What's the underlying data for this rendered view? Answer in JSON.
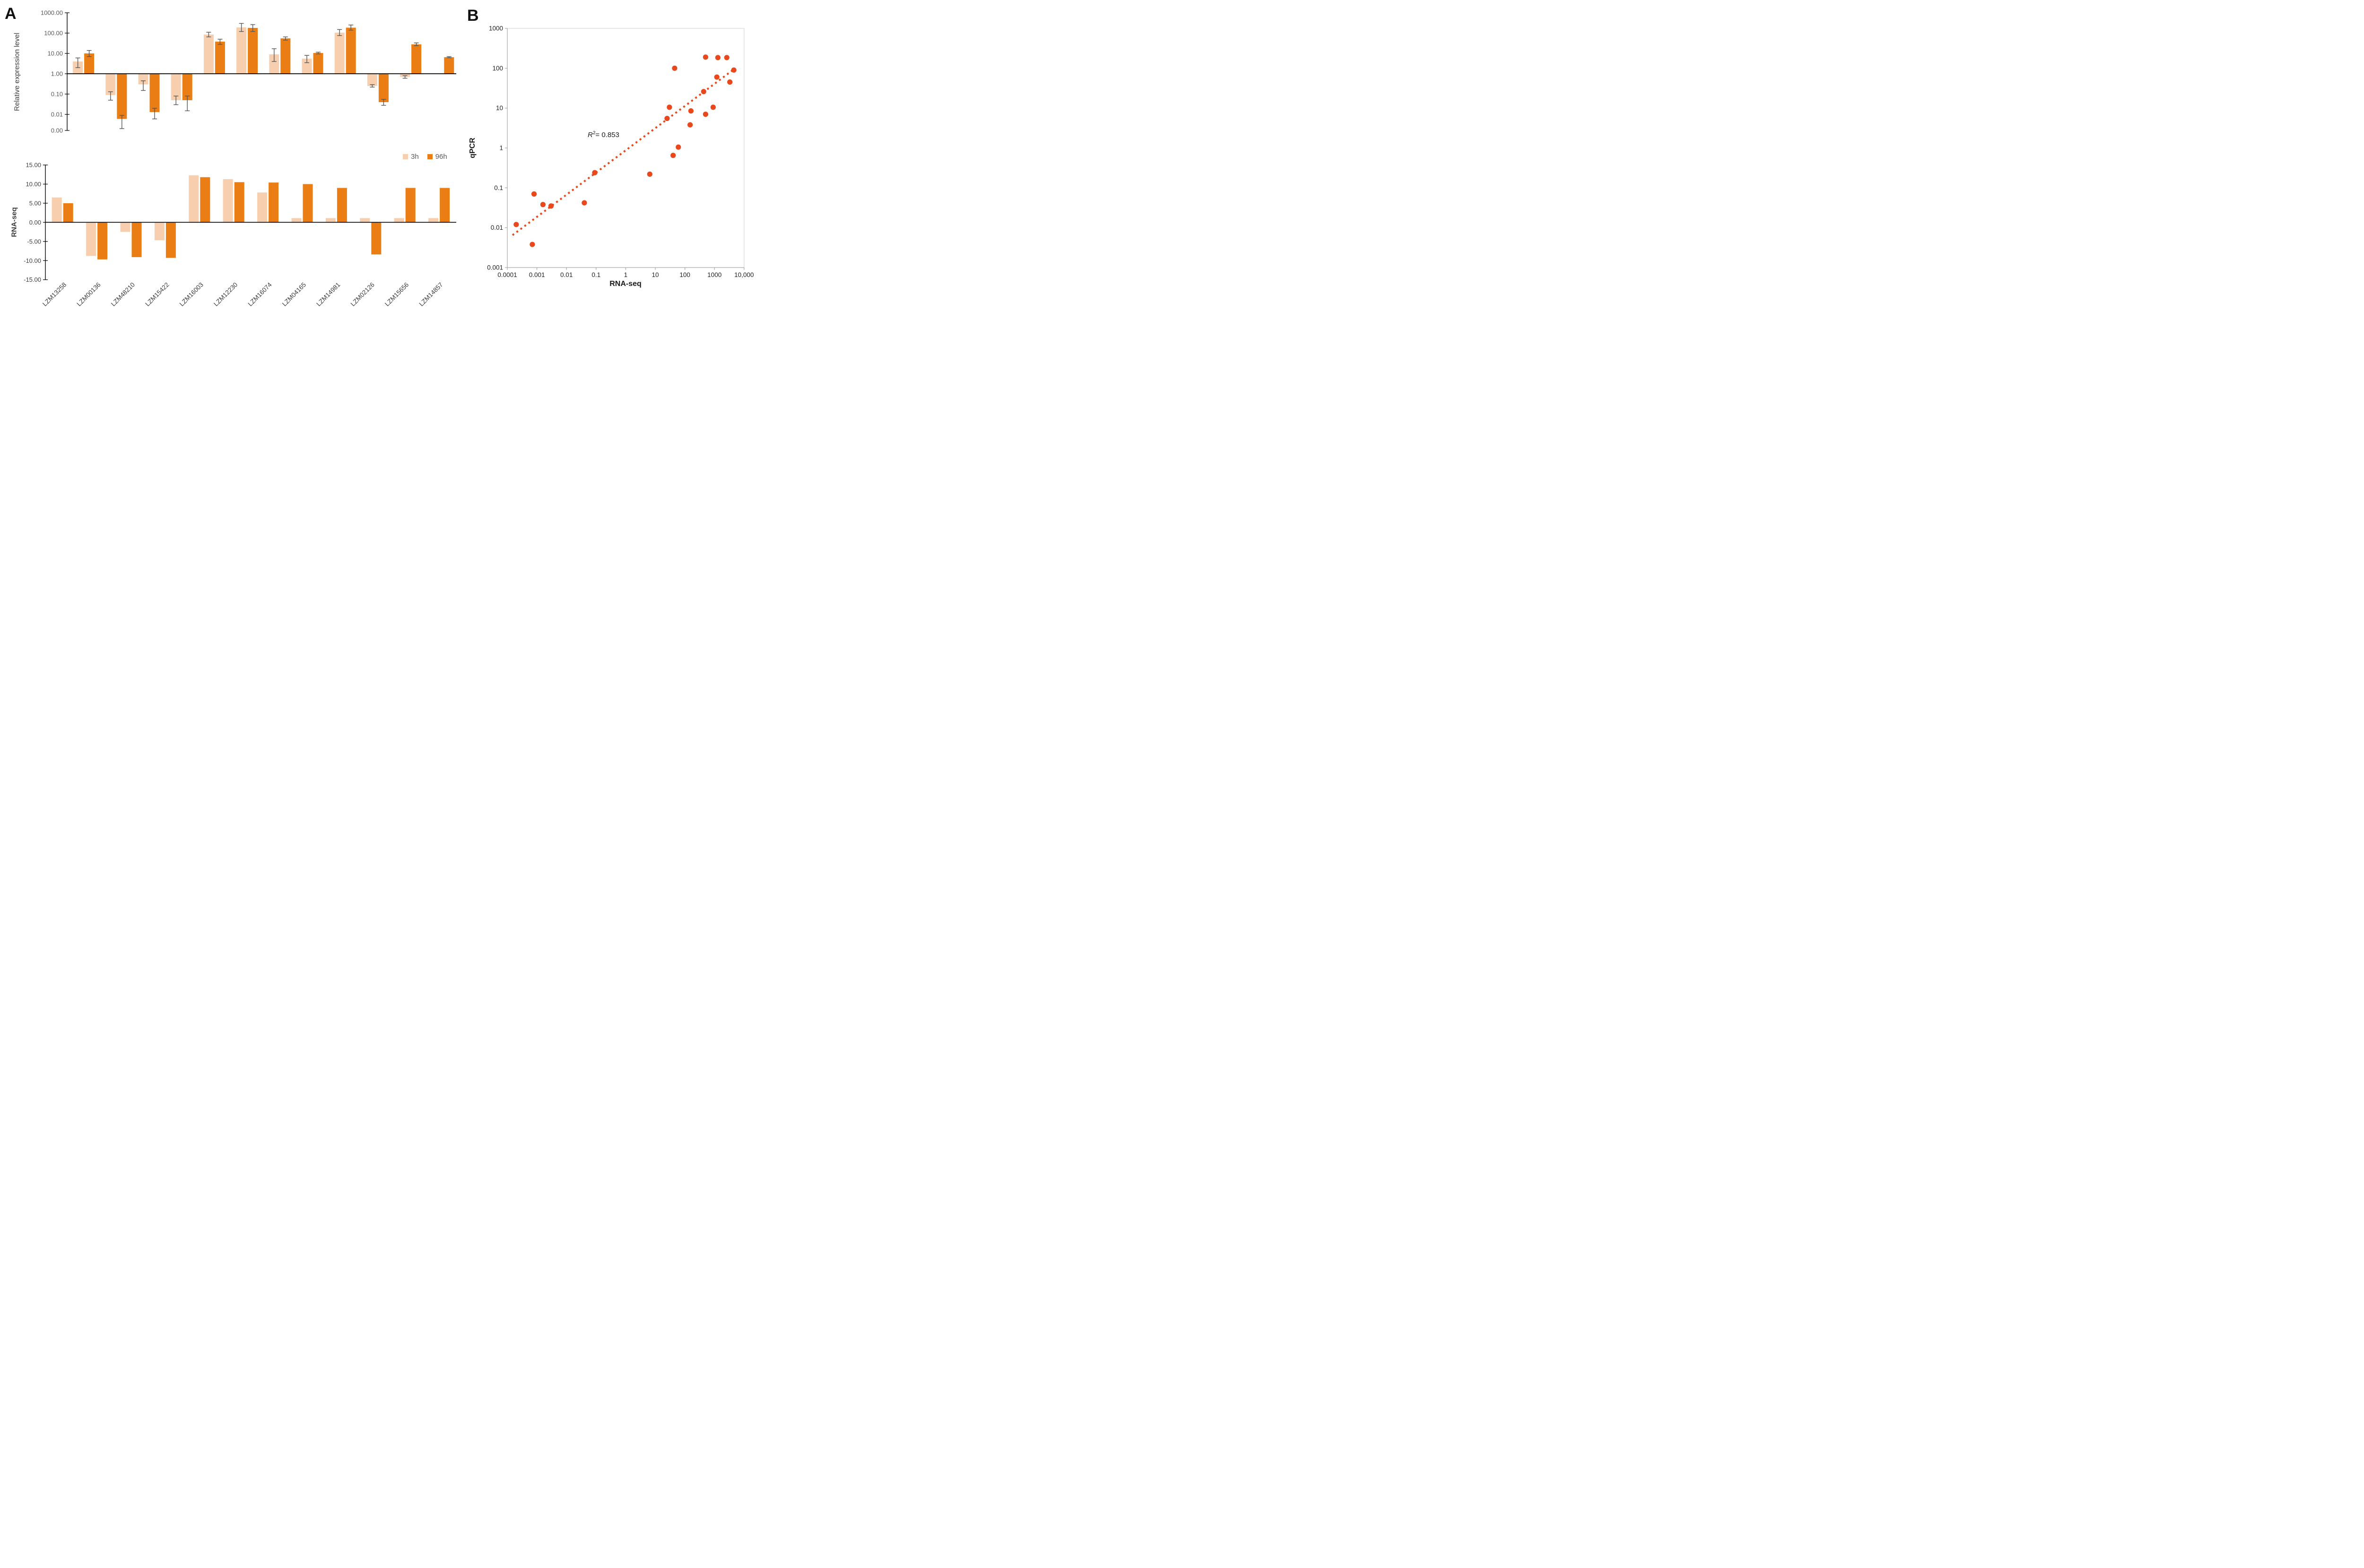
{
  "panels": {
    "a_label": "A",
    "b_label": "B"
  },
  "legend": {
    "items": [
      {
        "label": "3h",
        "color": "#F7CFAE"
      },
      {
        "label": "96h",
        "color": "#EA7D14"
      }
    ]
  },
  "annotation": {
    "r": "R",
    "exp": "2",
    "value": "= 0.853"
  },
  "colors": {
    "bar_3h": "#F7CFAE",
    "bar_96h": "#EA7D14",
    "error_bar": "#555555",
    "scatter": "#E8481C",
    "axis_dark": "#000000",
    "axis_gray": "#a6a6a6",
    "border_gray": "#d9d9d9",
    "tick_text_top": "#595959",
    "tick_text_bottom": "#3f3f3f",
    "tick_text_b": "#1f1f1f",
    "gene_label": "#3d3d3d"
  },
  "chart_data": [
    {
      "type": "bar",
      "id": "qpcr-relative-expression",
      "ylabel": "Relative expression level",
      "yscale": "log10",
      "ylim": [
        0.001,
        1000
      ],
      "ytick_labels": [
        "1000.00",
        "100.00",
        "10.00",
        "1.00",
        "0.10",
        "0.01",
        "0.00"
      ],
      "baseline": 1,
      "grid": false,
      "legend_position": "right-middle",
      "categories": [
        "LZM13258",
        "LZM00136",
        "LZM48210",
        "LZM15422",
        "LZM16003",
        "LZM12230",
        "LZM16074",
        "LZM04165",
        "LZM14981",
        "LZM02126",
        "LZM15656",
        "LZM14857"
      ],
      "series": [
        {
          "name": "3h",
          "values": [
            4,
            0.09,
            0.3,
            0.05,
            85,
            190,
            9,
            5.5,
            105,
            0.25,
            0.7,
            1
          ],
          "err_lo": [
            2,
            0.05,
            0.15,
            0.03,
            65,
            120,
            4,
            3.5,
            75,
            0.22,
            0.6,
            null
          ],
          "err_hi": [
            6,
            0.13,
            0.45,
            0.08,
            110,
            300,
            17,
            8,
            150,
            0.29,
            0.8,
            null
          ]
        },
        {
          "name": "96h",
          "values": [
            10,
            0.006,
            0.013,
            0.05,
            38,
            180,
            55,
            10.5,
            185,
            0.04,
            28,
            6.5
          ],
          "err_lo": [
            7,
            0.002,
            0.006,
            0.015,
            28,
            120,
            45,
            9.5,
            140,
            0.028,
            24,
            6.1
          ],
          "err_hi": [
            14,
            0.009,
            0.02,
            0.08,
            50,
            260,
            65,
            11.5,
            250,
            0.055,
            33,
            7
          ]
        }
      ]
    },
    {
      "type": "bar",
      "id": "rnaseq-log2fc",
      "ylabel": "RNA-seq",
      "yscale": "linear",
      "ylim": [
        -15,
        15
      ],
      "ytick_labels": [
        "15.00",
        "10.00",
        "5.00",
        "0.00",
        "-5.00",
        "-10.00",
        "-15.00"
      ],
      "baseline": 0,
      "grid": false,
      "categories": [
        "LZM13258",
        "LZM00136",
        "LZM48210",
        "LZM15422",
        "LZM16003",
        "LZM12230",
        "LZM16074",
        "LZM04165",
        "LZM14981",
        "LZM02126",
        "LZM15656",
        "LZM14857"
      ],
      "series": [
        {
          "name": "3h",
          "values": [
            6.5,
            -8.8,
            -2.5,
            -4.7,
            12.3,
            11.3,
            7.8,
            1.1,
            1.1,
            1.1,
            1.1,
            1.1
          ]
        },
        {
          "name": "96h",
          "values": [
            5.0,
            -9.7,
            -9.1,
            -9.3,
            11.8,
            10.5,
            10.4,
            10.0,
            9.0,
            -8.4,
            9.0,
            9.0
          ]
        }
      ]
    },
    {
      "type": "scatter",
      "id": "qpcr-vs-rnaseq-correlation",
      "xlabel": "RNA-seq",
      "ylabel": "qPCR",
      "xscale": "log10",
      "yscale": "log10",
      "xlim": [
        0.0001,
        10000
      ],
      "ylim": [
        0.001,
        1000
      ],
      "xtick_labels": [
        "0.0001",
        "0.001",
        "0.01",
        "0.1",
        "1",
        "10",
        "100",
        "1000",
        "10,000"
      ],
      "ytick_labels": [
        "1000",
        "100",
        "10",
        "1",
        "0.1",
        "0.01",
        "0.001"
      ],
      "annotation": "R2= 0.853",
      "grid": false,
      "points": [
        [
          0.0002,
          0.012
        ],
        [
          0.0007,
          0.0038
        ],
        [
          0.0008,
          0.07
        ],
        [
          0.0016,
          0.038
        ],
        [
          0.003,
          0.035
        ],
        [
          0.04,
          0.042
        ],
        [
          0.09,
          0.24
        ],
        [
          6.5,
          0.22
        ],
        [
          25,
          5.5
        ],
        [
          30,
          10.5
        ],
        [
          40,
          0.65
        ],
        [
          45,
          100
        ],
        [
          60,
          1.05
        ],
        [
          150,
          3.8
        ],
        [
          160,
          8.5
        ],
        [
          430,
          26
        ],
        [
          500,
          7
        ],
        [
          500,
          190
        ],
        [
          900,
          10.5
        ],
        [
          1200,
          60
        ],
        [
          1300,
          185
        ],
        [
          2600,
          185
        ],
        [
          3300,
          45
        ],
        [
          4500,
          90
        ]
      ],
      "trendline": {
        "x1": 0.00015,
        "y1": 0.0065,
        "x2": 4600,
        "y2": 95,
        "style": "dashed"
      }
    }
  ]
}
